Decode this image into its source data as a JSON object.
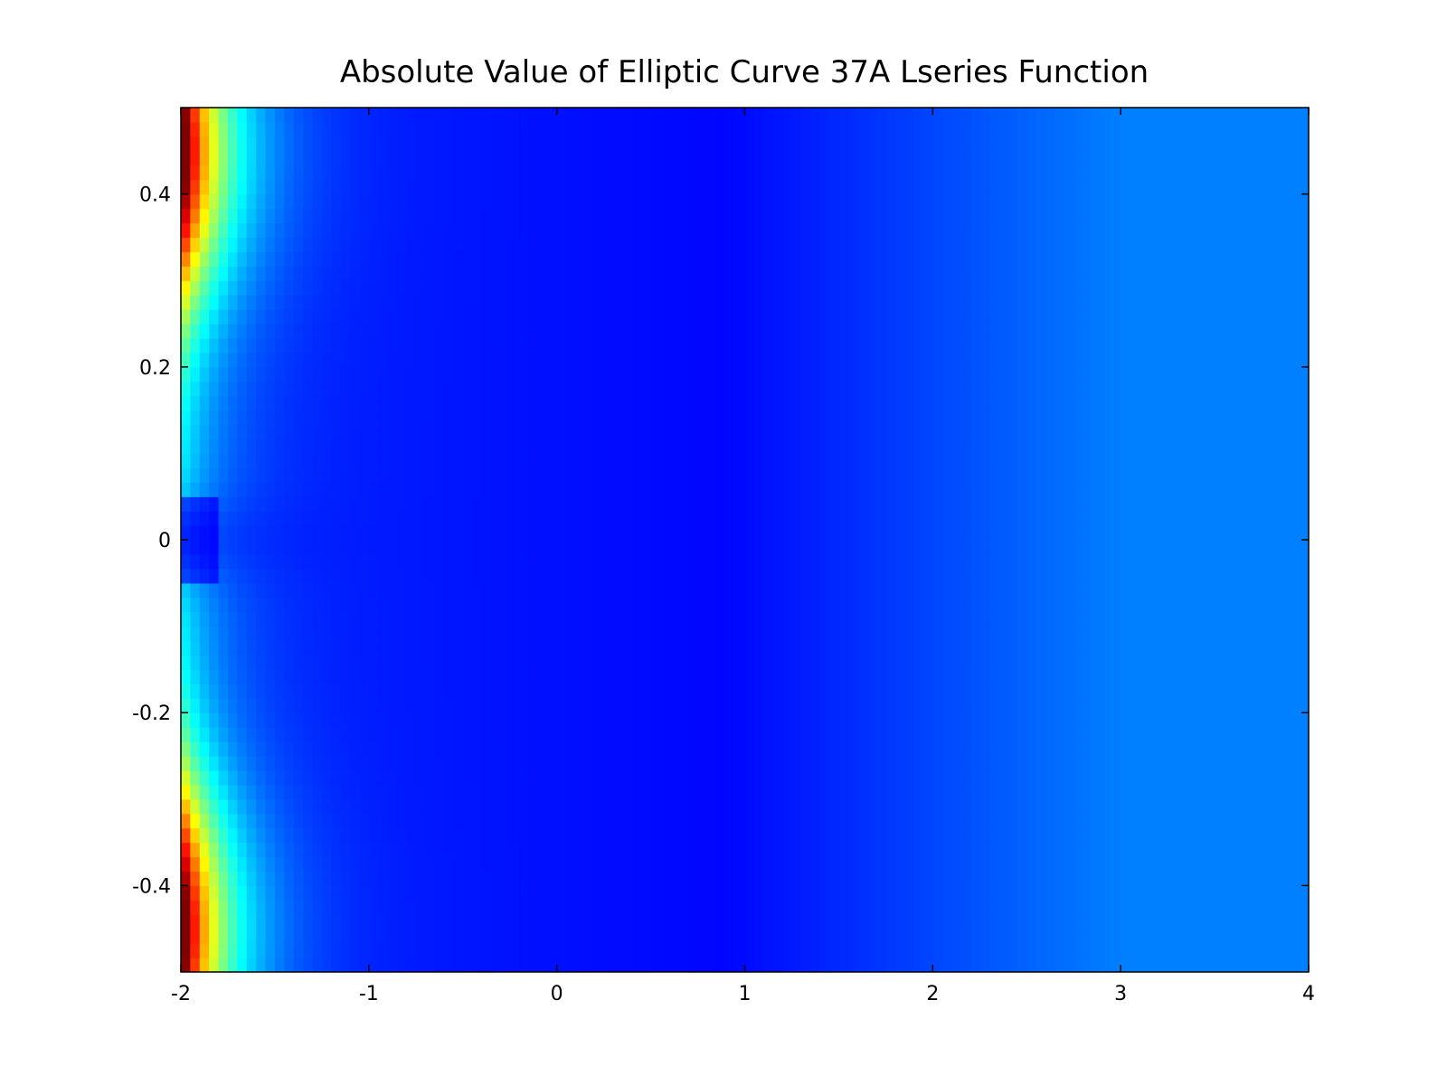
{
  "chart_data": {
    "type": "heatmap",
    "title": "Absolute Value of Elliptic Curve 37A Lseries Function",
    "xlabel": "",
    "ylabel": "",
    "xlim": [
      -2,
      4
    ],
    "ylim": [
      -0.5,
      0.5
    ],
    "x_ticks": [
      -2,
      -1,
      0,
      1,
      2,
      3,
      4
    ],
    "y_ticks": [
      -0.4,
      -0.2,
      0,
      0.2,
      0.4
    ],
    "x_tick_labels": [
      "-2",
      "-1",
      "0",
      "1",
      "2",
      "3",
      "4"
    ],
    "y_tick_labels": [
      "-0.4",
      "-0.2",
      "0",
      "0.2",
      "0.4"
    ],
    "colormap": "jet",
    "grid": false,
    "legend": "none"
  }
}
